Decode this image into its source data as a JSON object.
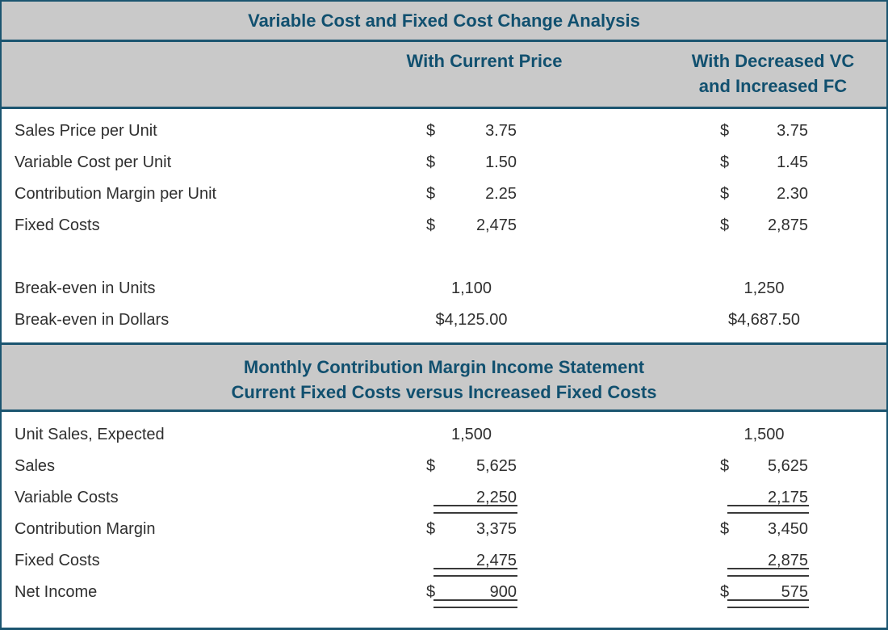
{
  "title": "Variable Cost and Fixed Cost Change Analysis",
  "column_headers": {
    "current": "With Current Price",
    "changed_line1": "With Decreased VC",
    "changed_line2": "and Increased FC"
  },
  "statement_header": {
    "line1": "Monthly Contribution Margin Income Statement",
    "line2": "Current Fixed Costs versus Increased Fixed Costs"
  },
  "colors": {
    "teal": "#11506F",
    "border": "#1B5570",
    "header_bg": "#C9C9C9",
    "body_text": "#2F2F2F",
    "rule": "#3A3A3A"
  },
  "analysis": {
    "rows": [
      {
        "label": "Sales Price per Unit",
        "c1_cur": "$",
        "c1": "3.75",
        "c2_cur": "$",
        "c2": "3.75"
      },
      {
        "label": "Variable Cost per Unit",
        "c1_cur": "$",
        "c1": "1.50",
        "c2_cur": "$",
        "c2": "1.45"
      },
      {
        "label": "Contribution Margin per Unit",
        "c1_cur": "$",
        "c1": "2.25",
        "c2_cur": "$",
        "c2": "2.30"
      },
      {
        "label": "Fixed Costs",
        "c1_cur": "$",
        "c1": "2,475",
        "c2_cur": "$",
        "c2": "2,875"
      },
      {
        "label": "Break-even in Units",
        "c1": "1,100",
        "c2": "1,250"
      },
      {
        "label": "Break-even in Dollars",
        "c1": "$4,125.00",
        "c2": "$4,687.50"
      }
    ]
  },
  "statement": {
    "rows": [
      {
        "label": "Unit Sales, Expected",
        "c1": "1,500",
        "c2": "1,500"
      },
      {
        "label": "Sales",
        "c1_cur": "$",
        "c1": "5,625",
        "c2_cur": "$",
        "c2": "5,625"
      },
      {
        "label": "Variable Costs",
        "c1": "2,250",
        "c2": "2,175"
      },
      {
        "label": "Contribution Margin",
        "c1_cur": "$",
        "c1": "3,375",
        "c2_cur": "$",
        "c2": "3,450"
      },
      {
        "label": "Fixed Costs",
        "c1": "2,475",
        "c2": "2,875"
      },
      {
        "label": "Net Income",
        "c1_cur": "$",
        "c1": "900",
        "c2_cur": "$",
        "c2": "575"
      }
    ]
  }
}
